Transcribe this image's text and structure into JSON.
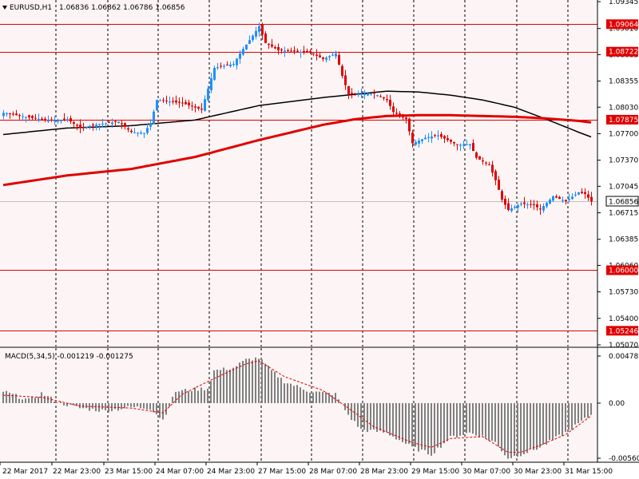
{
  "chart_title": {
    "symbol_label": "EURUSD,H1",
    "ohlc_text": "1.06836 1.06862 1.06786 1.06856",
    "menu_icon": "triangle-down-icon"
  },
  "macd_label": "MACD(5,34,5) -0.001219 -0.001275",
  "colors": {
    "background": "#fdf5f5",
    "bull_candle": "#1e90ff",
    "bear_candle": "#e00000",
    "ma_long": "#000000",
    "ma_red": "#e00000",
    "level_line": "#e00000",
    "level_tag": "#e00000",
    "current_line": "#c0c0c0",
    "macd_hist": "#808080",
    "macd_signal": "#e00000",
    "grid": "#000000"
  },
  "chart_data": [
    {
      "type": "candlestick",
      "panel": "price",
      "ylim": [
        1.0507,
        1.09345
      ],
      "y_ticks": [
        "1.09345",
        "1.09010",
        "1.08685",
        "1.08355",
        "1.08030",
        "1.07700",
        "1.07370",
        "1.07045",
        "1.06715",
        "1.06385",
        "1.06060",
        "1.05730",
        "1.05400",
        "1.05070"
      ],
      "x_ticks": [
        "22 Mar 2017",
        "22 Mar 23:00",
        "23 Mar 15:00",
        "24 Mar 07:00",
        "24 Mar 23:00",
        "27 Mar 15:00",
        "28 Mar 07:00",
        "28 Mar 23:00",
        "29 Mar 15:00",
        "30 Mar 07:00",
        "30 Mar 23:00",
        "31 Mar 15:00"
      ],
      "close_anchors": [
        [
          0,
          1.0796
        ],
        [
          14,
          1.0786
        ],
        [
          20,
          1.0788
        ],
        [
          24,
          1.0777
        ],
        [
          30,
          1.0782
        ],
        [
          36,
          1.0785
        ],
        [
          40,
          1.0772
        ],
        [
          44,
          1.0771
        ],
        [
          46,
          1.0783
        ],
        [
          48,
          1.0812
        ],
        [
          56,
          1.0808
        ],
        [
          62,
          1.08
        ],
        [
          66,
          1.0852
        ],
        [
          72,
          1.0857
        ],
        [
          74,
          1.087
        ],
        [
          78,
          1.0892
        ],
        [
          80,
          1.0904
        ],
        [
          82,
          1.0883
        ],
        [
          86,
          1.0874
        ],
        [
          96,
          1.0871
        ],
        [
          100,
          1.0863
        ],
        [
          104,
          1.087
        ],
        [
          106,
          1.0842
        ],
        [
          108,
          1.0819
        ],
        [
          116,
          1.082
        ],
        [
          120,
          1.0812
        ],
        [
          122,
          1.0797
        ],
        [
          126,
          1.0788
        ],
        [
          128,
          1.0758
        ],
        [
          132,
          1.0765
        ],
        [
          136,
          1.0768
        ],
        [
          142,
          1.0756
        ],
        [
          146,
          1.0757
        ],
        [
          148,
          1.074
        ],
        [
          152,
          1.0731
        ],
        [
          154,
          1.0712
        ],
        [
          156,
          1.0688
        ],
        [
          158,
          1.0675
        ],
        [
          162,
          1.0683
        ],
        [
          166,
          1.0681
        ],
        [
          168,
          1.0676
        ],
        [
          172,
          1.0692
        ],
        [
          176,
          1.0686
        ],
        [
          180,
          1.0697
        ],
        [
          182,
          1.0695
        ],
        [
          184,
          1.06856
        ]
      ],
      "horizontal_levels": [
        {
          "value": 1.09064,
          "label": "1.09064"
        },
        {
          "value": 1.08722,
          "label": "1.08722"
        },
        {
          "value": 1.07875,
          "label": "1.07875"
        },
        {
          "value": 1.06,
          "label": "1.06000"
        },
        {
          "value": 1.05246,
          "label": "1.05246"
        }
      ],
      "current_price": {
        "value": 1.06856,
        "label": "1.06856"
      },
      "moving_averages": [
        {
          "color": "#000000",
          "points": [
            [
              0,
              1.0769
            ],
            [
              20,
              1.0777
            ],
            [
              40,
              1.078
            ],
            [
              60,
              1.0787
            ],
            [
              80,
              1.0805
            ],
            [
              100,
              1.0815
            ],
            [
              120,
              1.0823
            ],
            [
              130,
              1.0822
            ],
            [
              140,
              1.0818
            ],
            [
              150,
              1.0812
            ],
            [
              160,
              1.0803
            ],
            [
              170,
              1.0788
            ],
            [
              180,
              1.0772
            ],
            [
              184,
              1.0766
            ]
          ]
        },
        {
          "color": "#e00000",
          "points": [
            [
              0,
              1.0706
            ],
            [
              20,
              1.0718
            ],
            [
              40,
              1.0726
            ],
            [
              60,
              1.0741
            ],
            [
              80,
              1.0762
            ],
            [
              100,
              1.0781
            ],
            [
              110,
              1.0788
            ],
            [
              120,
              1.0792
            ],
            [
              130,
              1.0793
            ],
            [
              140,
              1.0793
            ],
            [
              150,
              1.0792
            ],
            [
              160,
              1.0791
            ],
            [
              170,
              1.0789
            ],
            [
              180,
              1.0786
            ],
            [
              184,
              1.0784
            ]
          ]
        }
      ]
    },
    {
      "type": "histogram",
      "panel": "macd",
      "title": "MACD(5,34,5) -0.001219 -0.001275",
      "ylim": [
        -0.005605,
        0.004789
      ],
      "y_ticks": [
        "0.004789",
        "0.00",
        "-0.005605"
      ],
      "hist_anchors": [
        [
          0,
          0.0012
        ],
        [
          8,
          0.0003
        ],
        [
          12,
          0.001
        ],
        [
          18,
          0.0
        ],
        [
          24,
          -0.0005
        ],
        [
          32,
          -0.0008
        ],
        [
          40,
          -0.0004
        ],
        [
          46,
          -0.0005
        ],
        [
          50,
          -0.0017
        ],
        [
          54,
          0.0012
        ],
        [
          60,
          0.0014
        ],
        [
          64,
          0.0015
        ],
        [
          66,
          0.0033
        ],
        [
          72,
          0.0036
        ],
        [
          76,
          0.0044
        ],
        [
          80,
          0.0046
        ],
        [
          84,
          0.0033
        ],
        [
          88,
          0.0022
        ],
        [
          96,
          0.0012
        ],
        [
          104,
          0.0009
        ],
        [
          108,
          -0.0012
        ],
        [
          112,
          -0.0027
        ],
        [
          120,
          -0.003
        ],
        [
          128,
          -0.0045
        ],
        [
          134,
          -0.0052
        ],
        [
          140,
          -0.0035
        ],
        [
          146,
          -0.003
        ],
        [
          150,
          -0.0034
        ],
        [
          154,
          -0.004
        ],
        [
          158,
          -0.0056
        ],
        [
          162,
          -0.0052
        ],
        [
          168,
          -0.0045
        ],
        [
          176,
          -0.003
        ],
        [
          184,
          -0.0012
        ]
      ],
      "signal_anchors": [
        [
          0,
          0.0008
        ],
        [
          12,
          0.0006
        ],
        [
          24,
          -0.0003
        ],
        [
          40,
          -0.0005
        ],
        [
          50,
          -0.001
        ],
        [
          56,
          0.0009
        ],
        [
          66,
          0.0025
        ],
        [
          76,
          0.004
        ],
        [
          80,
          0.0043
        ],
        [
          88,
          0.0027
        ],
        [
          100,
          0.0013
        ],
        [
          108,
          -0.0005
        ],
        [
          116,
          -0.0024
        ],
        [
          128,
          -0.004
        ],
        [
          134,
          -0.0045
        ],
        [
          140,
          -0.0036
        ],
        [
          150,
          -0.0034
        ],
        [
          158,
          -0.005
        ],
        [
          162,
          -0.005
        ],
        [
          168,
          -0.0043
        ],
        [
          176,
          -0.0032
        ],
        [
          184,
          -0.0013
        ]
      ]
    }
  ]
}
